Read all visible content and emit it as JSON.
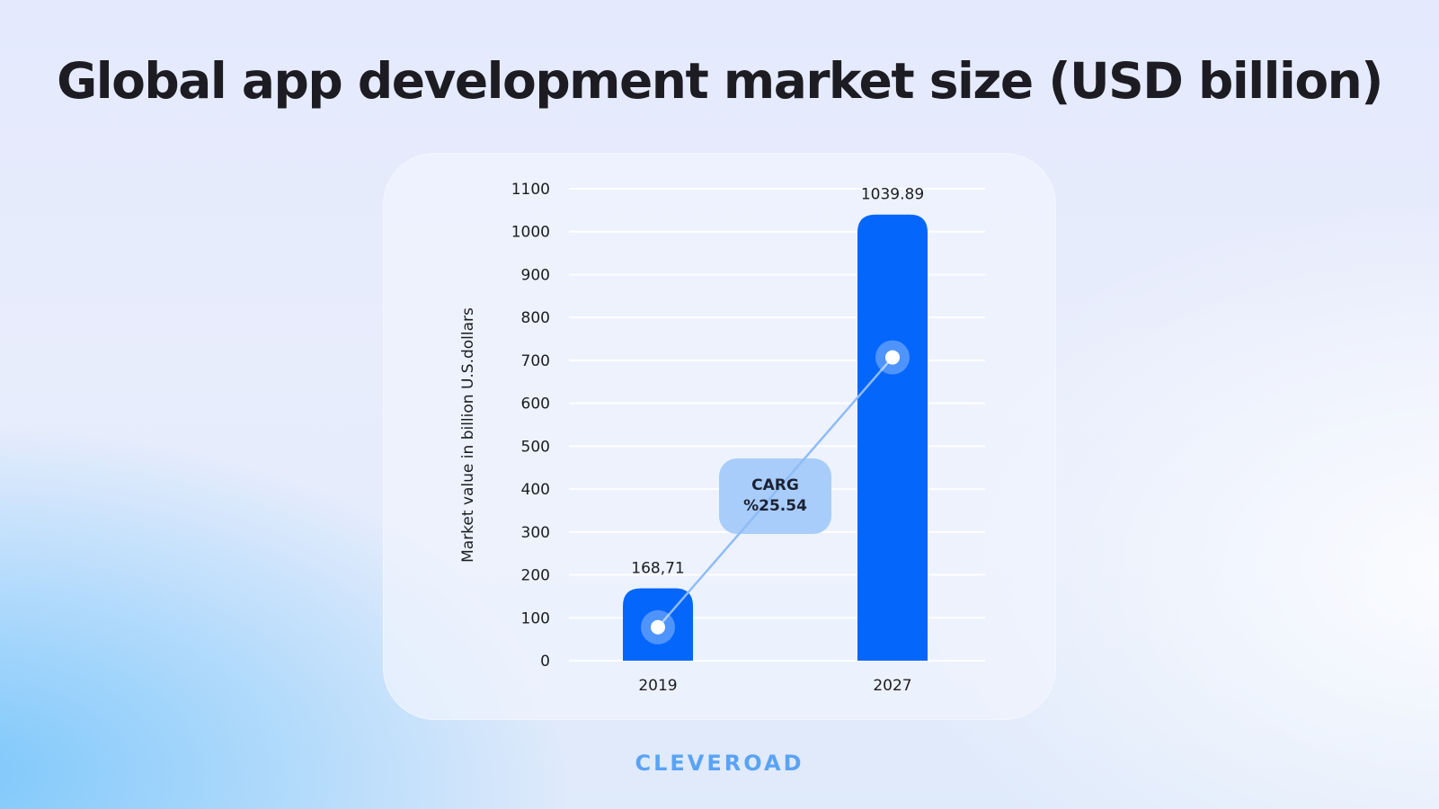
{
  "header": {
    "title": "Global app development market size (USD billion)"
  },
  "brand": {
    "logo_text": "CLEVEROAD"
  },
  "chart_data": {
    "type": "bar",
    "title": "Global app development market size (USD billion)",
    "xlabel": "",
    "ylabel": "Market value in billion U.S.dollars",
    "categories": [
      "2019",
      "2027"
    ],
    "values": [
      168.71,
      1039.89
    ],
    "data_labels": [
      "168,71",
      "1039.89"
    ],
    "ylim": [
      0,
      1100
    ],
    "yticks": [
      0,
      100,
      200,
      300,
      400,
      500,
      600,
      700,
      800,
      900,
      1000,
      1100
    ],
    "grid": true,
    "legend": "none",
    "bar_color": "#0466fb",
    "trend_line": {
      "from_value": 78,
      "to_value": 707,
      "label_line1": "CARG",
      "label_line2": "%25.54"
    }
  }
}
